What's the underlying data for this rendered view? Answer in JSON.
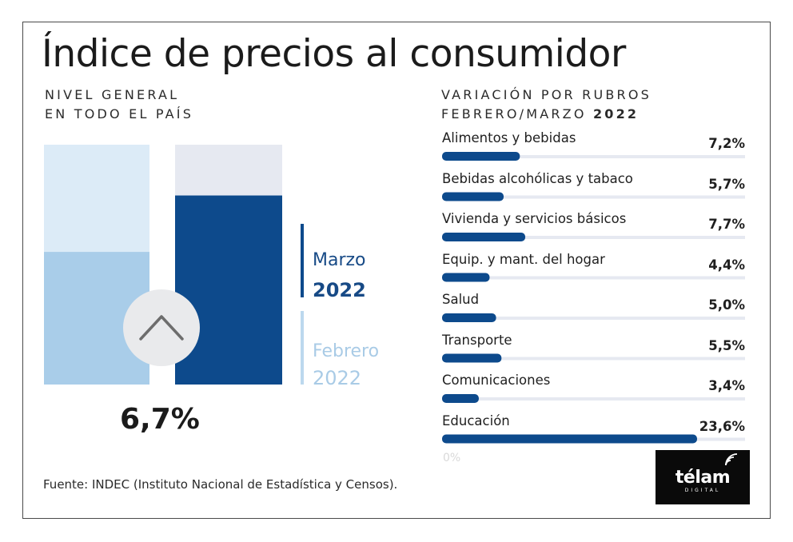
{
  "title": "Índice de precios al consumidor",
  "left_panel": {
    "subtitle_line1": "NIVEL GENERAL",
    "subtitle_line2": "EN TODO EL PAÍS",
    "total_value": "6,7%",
    "arrow_icon": "chevron-up-icon",
    "legend": {
      "marzo_month": "Marzo",
      "marzo_year": "2022",
      "febrero_month": "Febrero",
      "febrero_year": "2022"
    }
  },
  "right_panel": {
    "subtitle_line1": "VARIACIÓN POR RUBROS",
    "subtitle_line2_prefix": "FEBRERO/MARZO ",
    "subtitle_line2_year": "2022",
    "zero_label": "0%"
  },
  "source": "Fuente: INDEC (Instituto Nacional de Estadística y Censos).",
  "logo": {
    "word": "télam",
    "sub": "DIGITAL"
  },
  "colors": {
    "marzo": "#0d4a8c",
    "febrero": "#a9cde9",
    "track": "#e6e9f1",
    "rubro_bar": "#0d4a8c"
  },
  "chart_data": [
    {
      "type": "bar",
      "title": "",
      "categories": [
        "Febrero 2022",
        "Marzo 2022"
      ],
      "series": [
        {
          "name": "Nivel general",
          "values": [
            4.7,
            6.7
          ]
        }
      ],
      "ylim": [
        0,
        8.5
      ],
      "grid": false,
      "legend": "right"
    },
    {
      "type": "bar",
      "orientation": "horizontal",
      "categories": [
        "Alimentos y bebidas",
        "Bebidas alcohólicas y tabaco",
        "Vivienda y servicios básicos",
        "Equip. y mant. del hogar",
        "Salud",
        "Transporte",
        "Comunicaciones",
        "Educación"
      ],
      "values": [
        7.2,
        5.7,
        7.7,
        4.4,
        5.0,
        5.5,
        3.4,
        23.6
      ],
      "value_labels": [
        "7,2%",
        "5,7%",
        "7,7%",
        "4,4%",
        "5,0%",
        "5,5%",
        "3,4%",
        "23,6%"
      ],
      "xlim": [
        0,
        25
      ],
      "grid": false
    }
  ]
}
